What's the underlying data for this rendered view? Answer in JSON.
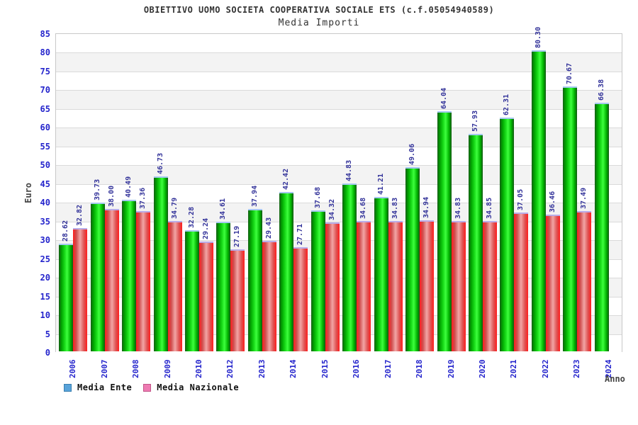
{
  "chart_data": {
    "type": "bar",
    "title": "OBIETTIVO UOMO SOCIETA COOPERATIVA SOCIALE ETS (c.f.05054940589)",
    "subtitle": "Media Importi",
    "xlabel": "Anno",
    "ylabel": "Euro",
    "ylim": [
      0,
      85
    ],
    "ytick_step": 5,
    "grid": true,
    "legend_position": "bottom-left",
    "categories": [
      "2006",
      "2007",
      "2008",
      "2009",
      "2010",
      "2012",
      "2013",
      "2014",
      "2015",
      "2016",
      "2017",
      "2018",
      "2019",
      "2020",
      "2021",
      "2022",
      "2023",
      "2024"
    ],
    "series": [
      {
        "name": "Media Ente",
        "values": [
          28.62,
          39.73,
          40.49,
          46.73,
          32.28,
          34.61,
          37.94,
          42.42,
          37.68,
          44.83,
          41.21,
          49.06,
          64.04,
          57.93,
          62.31,
          80.3,
          70.67,
          66.38
        ]
      },
      {
        "name": "Media Nazionale",
        "values": [
          32.82,
          38.0,
          37.36,
          34.79,
          29.24,
          27.19,
          29.43,
          27.71,
          34.32,
          34.68,
          34.83,
          34.94,
          34.83,
          34.85,
          37.05,
          36.46,
          37.49,
          null
        ]
      }
    ],
    "colors": {
      "bar_green": "#00cc00",
      "bar_red": "#ff3333",
      "legend_ente_fill": "#58a3da",
      "legend_ente_border": "#3a7fb0",
      "legend_nazionale_fill": "#ee7ab2",
      "legend_nazionale_border": "#c25588",
      "axis_tick_blue": "#2424cc",
      "value_label_navy": "#33339a",
      "band_gray": "#f3f3f3",
      "title_gray": "#333333"
    }
  }
}
